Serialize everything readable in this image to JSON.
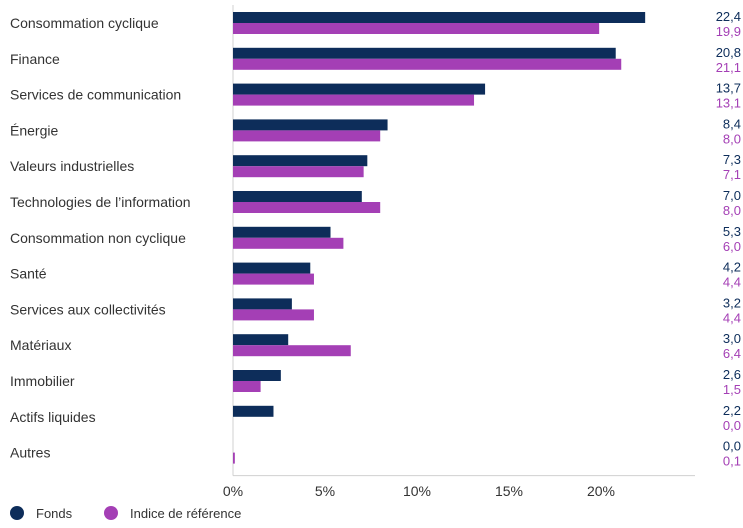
{
  "chart_data": {
    "type": "bar",
    "orientation": "horizontal",
    "categories": [
      "Consommation cyclique",
      "Finance",
      "Services de communication",
      "Énergie",
      "Valeurs industrielles",
      "Technologies de l’information",
      "Consommation non cyclique",
      "Santé",
      "Services aux collectivités",
      "Matériaux",
      "Immobilier",
      "Actifs liquides",
      "Autres"
    ],
    "series": [
      {
        "name": "Fonds",
        "color": "#0d2d5a",
        "values": [
          22.4,
          20.8,
          13.7,
          8.4,
          7.3,
          7.0,
          5.3,
          4.2,
          3.2,
          3.0,
          2.6,
          2.2,
          0.0
        ],
        "labels": [
          "22,4",
          "20,8",
          "13,7",
          "8,4",
          "7,3",
          "7,0",
          "5,3",
          "4,2",
          "3,2",
          "3,0",
          "2,6",
          "2,2",
          "0,0"
        ]
      },
      {
        "name": "Indice de référence",
        "color": "#a43fb5",
        "values": [
          19.9,
          21.1,
          13.1,
          8.0,
          7.1,
          8.0,
          6.0,
          4.4,
          4.4,
          6.4,
          1.5,
          0.0,
          0.1
        ],
        "labels": [
          "19,9",
          "21,1",
          "13,1",
          "8,0",
          "7,1",
          "8,0",
          "6,0",
          "4,4",
          "4,4",
          "6,4",
          "1,5",
          "0,0",
          "0,1"
        ]
      }
    ],
    "xlim": [
      0,
      25
    ],
    "xticks": [
      0,
      5,
      10,
      15,
      20
    ],
    "xtick_labels": [
      "0%",
      "5%",
      "10%",
      "15%",
      "20%"
    ],
    "grid": false,
    "legend_position": "bottom-left"
  }
}
